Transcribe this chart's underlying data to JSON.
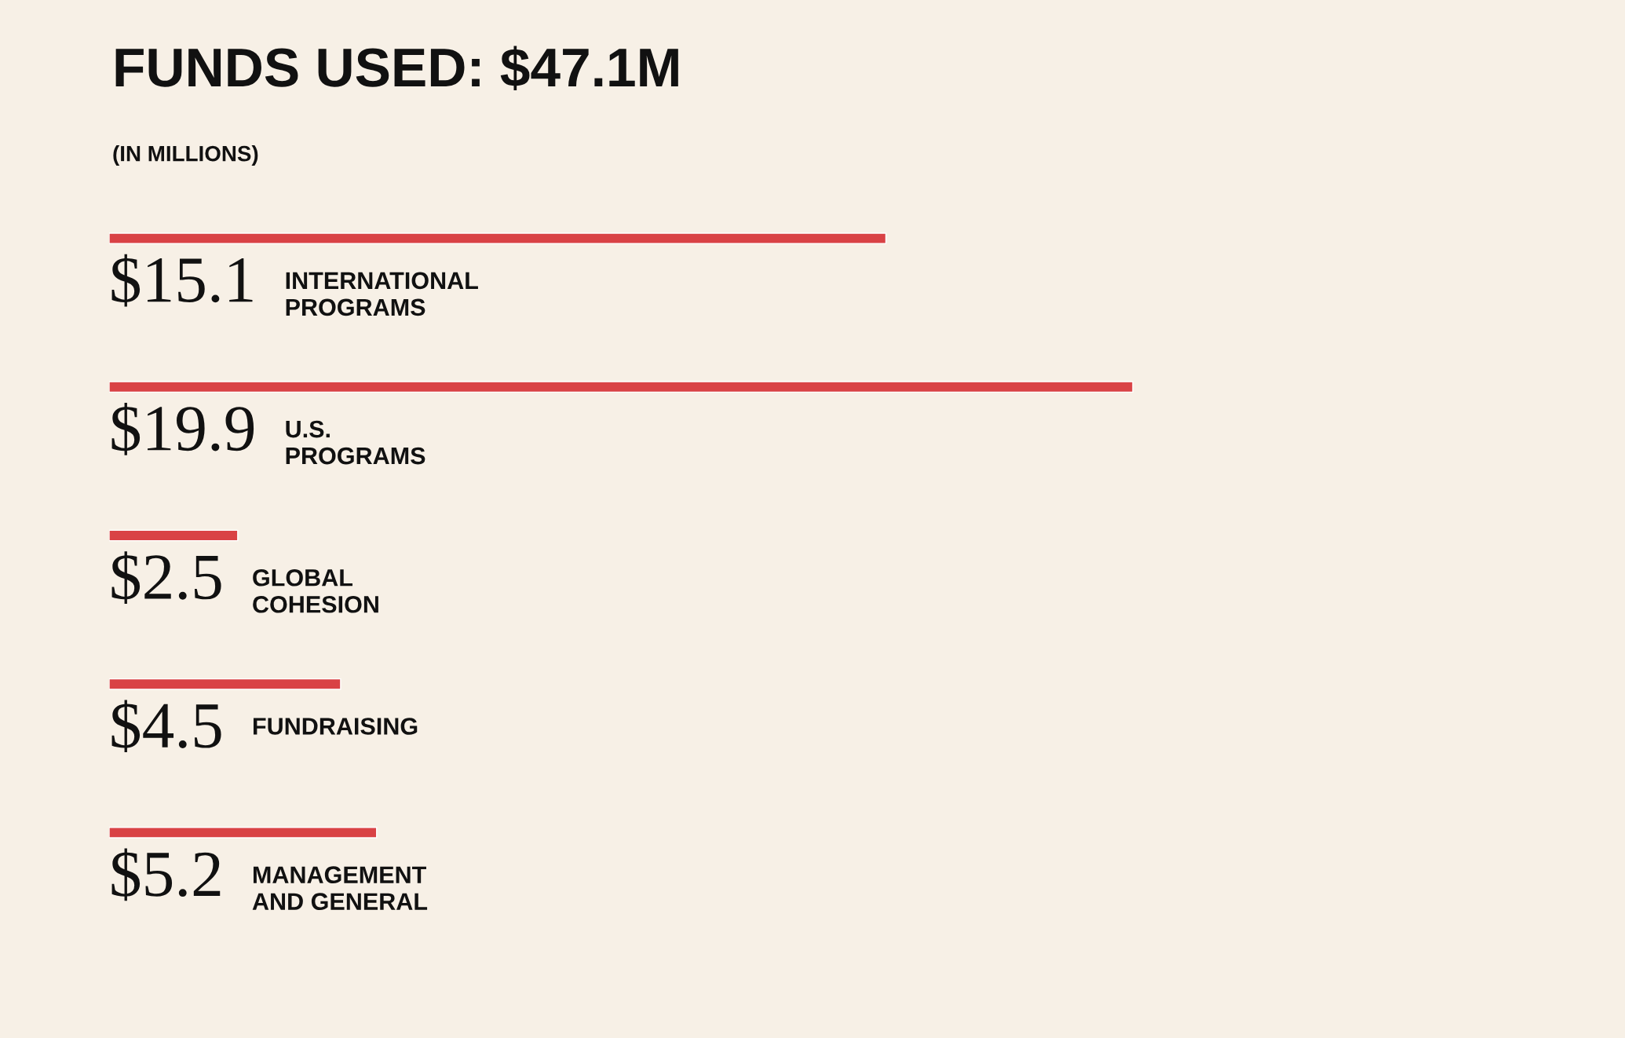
{
  "chart_data": {
    "type": "bar",
    "orientation": "horizontal",
    "title": "FUNDS USED: $47.1M",
    "subtitle": "(IN MILLIONS)",
    "categories": [
      "INTERNATIONAL\nPROGRAMS",
      "U.S.\nPROGRAMS",
      "GLOBAL\nCOHESION",
      "FUNDRAISING",
      "MANAGEMENT\nAND GENERAL"
    ],
    "values": [
      15.1,
      19.9,
      2.5,
      4.5,
      5.2
    ],
    "value_labels": [
      "$15.1",
      "$19.9",
      "$2.5",
      "$4.5",
      "$5.2"
    ],
    "color": "#d94245"
  }
}
